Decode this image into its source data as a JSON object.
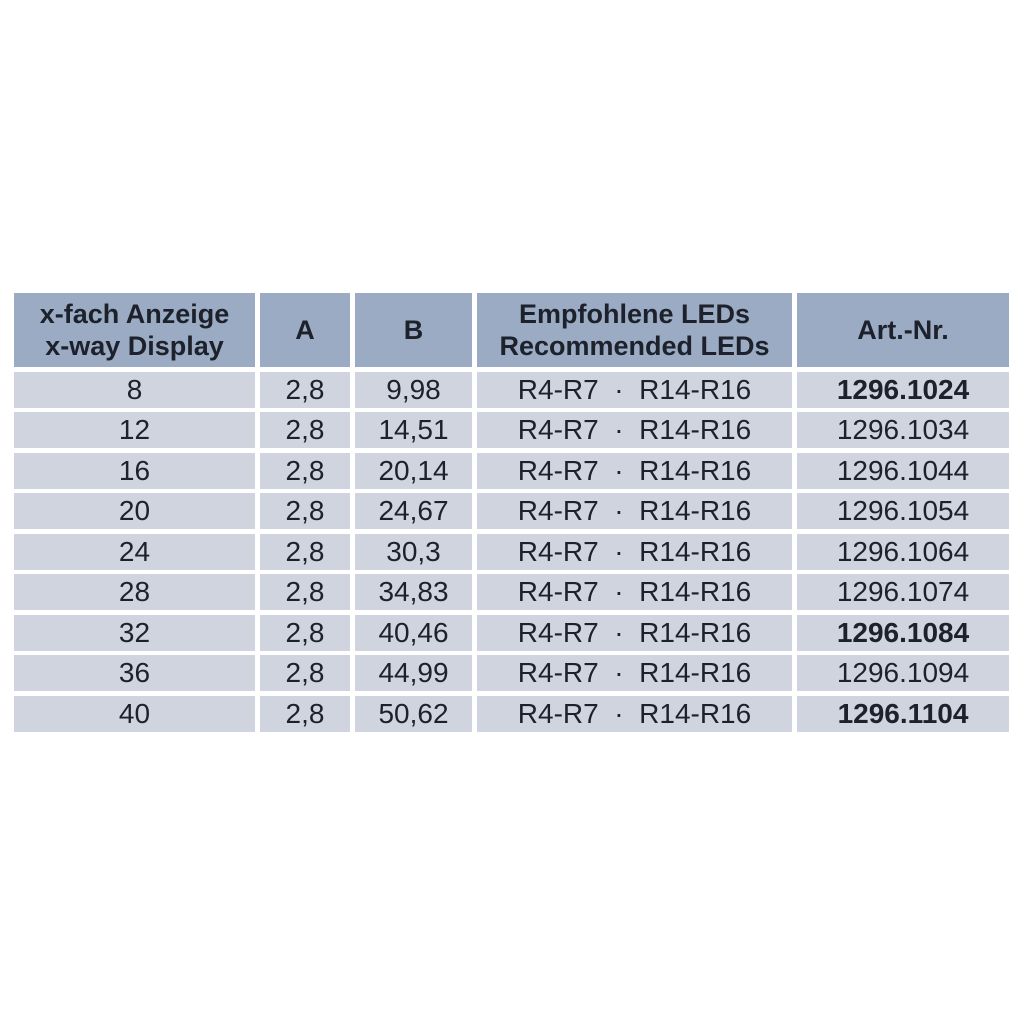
{
  "table": {
    "colors": {
      "header_bg": "#9cabc4",
      "row_bg": "#cfd4df",
      "text": "#1c212b",
      "page_background": "#ffffff"
    },
    "headers": {
      "display_line1": "x-fach Anzeige",
      "display_line2": "x-way Display",
      "a": "A",
      "b": "B",
      "leds_line1": "Empfohlene LEDs",
      "leds_line2": "Recommended LEDs",
      "art_nr": "Art.-Nr."
    },
    "rows": [
      {
        "display": "8",
        "a": "2,8",
        "b": "9,98",
        "leds": "R4-R7  ·  R14-R16",
        "art_nr": "1296.1024",
        "art_bold": true
      },
      {
        "display": "12",
        "a": "2,8",
        "b": "14,51",
        "leds": "R4-R7  ·  R14-R16",
        "art_nr": "1296.1034",
        "art_bold": false
      },
      {
        "display": "16",
        "a": "2,8",
        "b": "20,14",
        "leds": "R4-R7  ·  R14-R16",
        "art_nr": "1296.1044",
        "art_bold": false
      },
      {
        "display": "20",
        "a": "2,8",
        "b": "24,67",
        "leds": "R4-R7  ·  R14-R16",
        "art_nr": "1296.1054",
        "art_bold": false
      },
      {
        "display": "24",
        "a": "2,8",
        "b": "30,3",
        "leds": "R4-R7  ·  R14-R16",
        "art_nr": "1296.1064",
        "art_bold": false
      },
      {
        "display": "28",
        "a": "2,8",
        "b": "34,83",
        "leds": "R4-R7  ·  R14-R16",
        "art_nr": "1296.1074",
        "art_bold": false
      },
      {
        "display": "32",
        "a": "2,8",
        "b": "40,46",
        "leds": "R4-R7  ·  R14-R16",
        "art_nr": "1296.1084",
        "art_bold": true
      },
      {
        "display": "36",
        "a": "2,8",
        "b": "44,99",
        "leds": "R4-R7  ·  R14-R16",
        "art_nr": "1296.1094",
        "art_bold": false
      },
      {
        "display": "40",
        "a": "2,8",
        "b": "50,62",
        "leds": "R4-R7  ·  R14-R16",
        "art_nr": "1296.1104",
        "art_bold": true
      }
    ]
  }
}
